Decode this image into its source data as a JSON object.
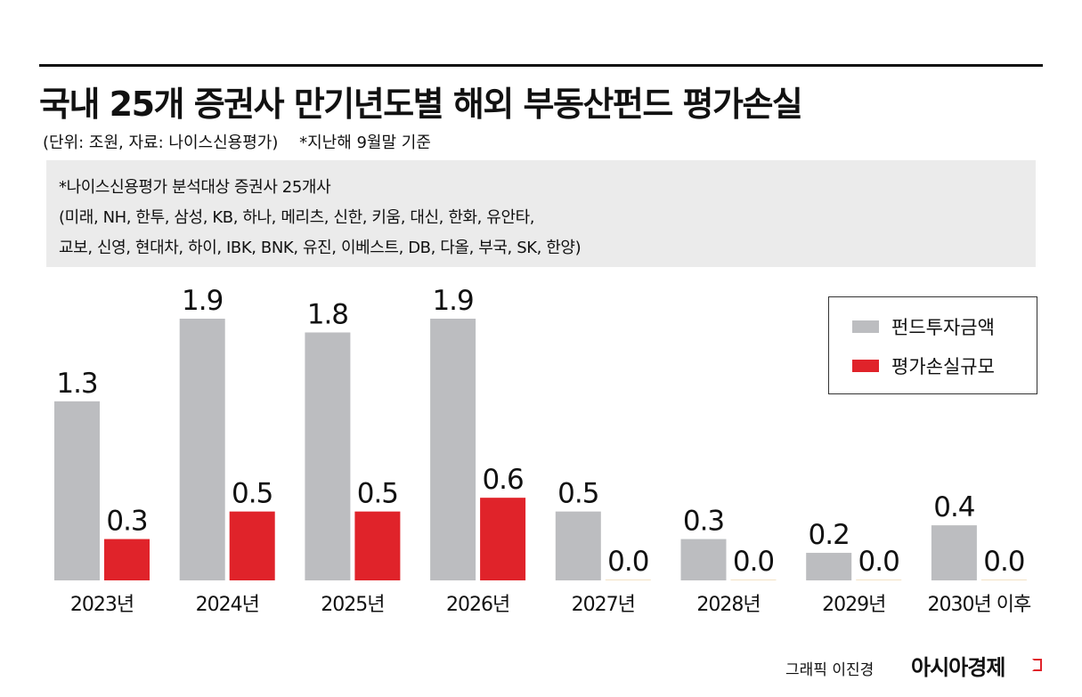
{
  "header": {
    "title": "국내 25개 증권사 만기년도별 해외 부동산펀드 평가손실",
    "unit_note": "(단위: 조원, 자료:  나이스신용평가)",
    "basis_note": "*지난해 9월말 기준"
  },
  "note": {
    "line1": "*나이스신용평가 분석대상 증권사 25개사",
    "line2": "(미래, NH, 한투, 삼성, KB, 하나, 메리츠, 신한,  키움, 대신, 한화, 유안타,",
    "line3": "교보, 신영, 현대차,  하이, IBK, BNK, 유진, 이베스트, DB, 다올, 부국, SK, 한양)"
  },
  "chart_data": {
    "type": "bar",
    "categories": [
      "2023년",
      "2024년",
      "2025년",
      "2026년",
      "2027년",
      "2028년",
      "2029년",
      "2030년 이후"
    ],
    "series": [
      {
        "name": "펀드투자금액",
        "color": "#bcbdc0",
        "values": [
          1.3,
          1.9,
          1.8,
          1.9,
          0.5,
          0.3,
          0.2,
          0.4
        ],
        "labels": [
          "1.3",
          "1.9",
          "1.8",
          "1.9",
          "0.5",
          "0.3",
          "0.2",
          "0.4"
        ]
      },
      {
        "name": "평가손실규모",
        "color": "#e0232a",
        "values": [
          0.3,
          0.5,
          0.5,
          0.6,
          0.0,
          0.0,
          0.0,
          0.0
        ],
        "labels": [
          "0.3",
          "0.5",
          "0.5",
          "0.6",
          "0.0",
          "0.0",
          "0.0",
          "0.0"
        ]
      }
    ],
    "ylim": [
      0,
      1.9
    ],
    "grid": false,
    "legend": "top-right"
  },
  "footer": {
    "credit": "그래픽 이진경",
    "brand": "아시아경제"
  }
}
